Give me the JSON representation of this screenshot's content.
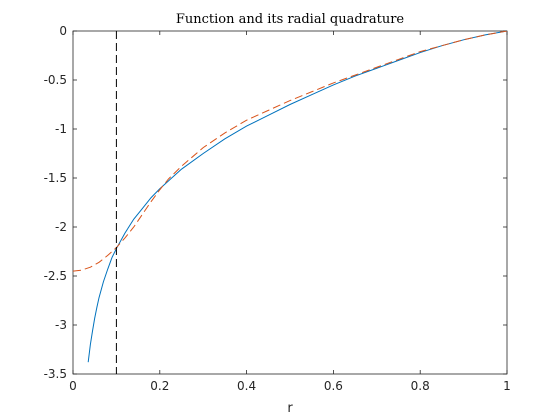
{
  "chart_data": {
    "type": "line",
    "title": "Function and its radial quadrature",
    "xlabel": "r",
    "ylabel": "",
    "xlim": [
      0,
      1
    ],
    "ylim": [
      -3.5,
      0
    ],
    "xticks": [
      0,
      0.2,
      0.4,
      0.6,
      0.8,
      1
    ],
    "xtick_labels": [
      "0",
      "0.2",
      "0.4",
      "0.6",
      "0.8",
      "1"
    ],
    "yticks": [
      0,
      -0.5,
      -1,
      -1.5,
      -2,
      -2.5,
      -3,
      -3.5
    ],
    "ytick_labels": [
      "0",
      "-0.5",
      "-1",
      "-1.5",
      "-2",
      "-2.5",
      "-3",
      "-3.5"
    ],
    "grid": false,
    "box": true,
    "series": [
      {
        "style": "solid",
        "color": "#0072bd",
        "x": [
          0.035,
          0.04,
          0.045,
          0.05,
          0.055,
          0.06,
          0.07,
          0.08,
          0.09,
          0.1,
          0.12,
          0.14,
          0.16,
          0.18,
          0.2,
          0.25,
          0.3,
          0.35,
          0.4,
          0.45,
          0.5,
          0.55,
          0.6,
          0.65,
          0.7,
          0.75,
          0.8,
          0.85,
          0.9,
          0.95,
          1.0
        ],
        "y": [
          -3.38,
          -3.2,
          -3.06,
          -2.93,
          -2.82,
          -2.72,
          -2.56,
          -2.43,
          -2.31,
          -2.22,
          -2.06,
          -1.92,
          -1.81,
          -1.7,
          -1.61,
          -1.41,
          -1.25,
          -1.1,
          -0.97,
          -0.86,
          -0.75,
          -0.65,
          -0.55,
          -0.46,
          -0.38,
          -0.3,
          -0.22,
          -0.15,
          -0.09,
          -0.04,
          0.0
        ]
      },
      {
        "style": "dashed",
        "color": "#d95319",
        "x": [
          0.0,
          0.02,
          0.04,
          0.06,
          0.08,
          0.1,
          0.12,
          0.14,
          0.16,
          0.18,
          0.2,
          0.22,
          0.25,
          0.3,
          0.35,
          0.4,
          0.45,
          0.5,
          0.55,
          0.6,
          0.65,
          0.7,
          0.75,
          0.8,
          0.85,
          0.9,
          0.95,
          1.0
        ],
        "y": [
          -2.45,
          -2.44,
          -2.41,
          -2.36,
          -2.29,
          -2.21,
          -2.11,
          -2.0,
          -1.87,
          -1.74,
          -1.62,
          -1.51,
          -1.38,
          -1.19,
          -1.04,
          -0.91,
          -0.81,
          -0.71,
          -0.62,
          -0.53,
          -0.45,
          -0.37,
          -0.29,
          -0.21,
          -0.15,
          -0.09,
          -0.04,
          0.0
        ]
      }
    ],
    "vline": {
      "x": 0.1,
      "style": "dashed",
      "color": "#000000"
    }
  }
}
